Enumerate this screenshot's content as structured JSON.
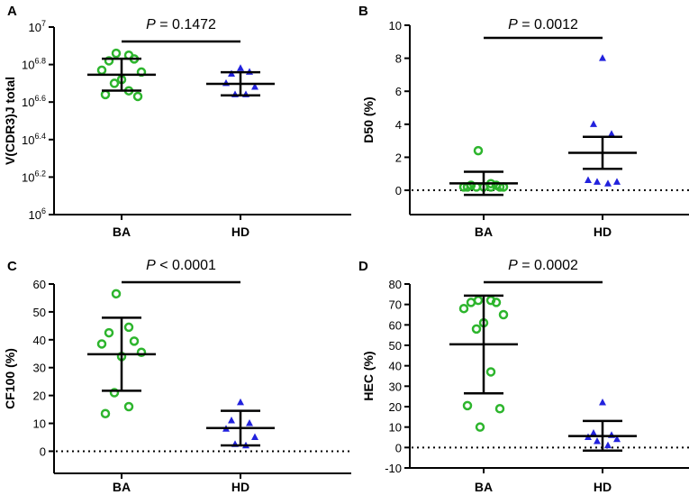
{
  "chart_data": [
    {
      "panel": "A",
      "type": "scatter",
      "ylabel": "V(CDR3)J total",
      "yscale": "log10",
      "ylim": [
        6,
        7
      ],
      "yticks": [
        6,
        6.2,
        6.4,
        6.6,
        6.8,
        7
      ],
      "ytick_labels": [
        {
          "base": "10",
          "exp": "6"
        },
        {
          "base": "10",
          "exp": "6.2"
        },
        {
          "base": "10",
          "exp": "6.4"
        },
        {
          "base": "10",
          "exp": "6.6"
        },
        {
          "base": "10",
          "exp": "6.8"
        },
        {
          "base": "10",
          "exp": "7"
        }
      ],
      "categories": [
        "BA",
        "HD"
      ],
      "p_label": {
        "p": "P",
        "rest": " = 0.1472"
      },
      "zero_line": false,
      "groups": [
        {
          "name": "BA",
          "marker": "circle",
          "color": "#2db52d",
          "values": [
            6.86,
            6.85,
            6.82,
            6.83,
            6.77,
            6.76,
            6.72,
            6.7,
            6.66,
            6.64,
            6.63
          ],
          "mean": 6.746,
          "err_low": 6.661,
          "err_high": 6.831
        },
        {
          "name": "HD",
          "marker": "triangle",
          "color": "#2222dd",
          "values": [
            6.78,
            6.75,
            6.76,
            6.7,
            6.68,
            6.64,
            6.64
          ],
          "mean": 6.697,
          "err_low": 6.636,
          "err_high": 6.759
        }
      ]
    },
    {
      "panel": "B",
      "type": "scatter",
      "ylabel": "D50 (%)",
      "ylim": [
        -1.2,
        10
      ],
      "yticks": [
        0,
        2,
        4,
        6,
        8,
        10
      ],
      "ytick_labels": [
        "0",
        "2",
        "4",
        "6",
        "8",
        "10"
      ],
      "categories": [
        "BA",
        "HD"
      ],
      "p_label": {
        "p": "P",
        "rest": " = 0.0012"
      },
      "zero_line": true,
      "groups": [
        {
          "name": "BA",
          "marker": "circle",
          "color": "#2db52d",
          "values": [
            2.4,
            0.4,
            0.3,
            0.3,
            0.2,
            0.2,
            0.2,
            0.2,
            0.2,
            0.2,
            0.2
          ],
          "mean": 0.42,
          "err_low": -0.28,
          "err_high": 1.12
        },
        {
          "name": "HD",
          "marker": "triangle",
          "color": "#2222dd",
          "values": [
            8.0,
            4.0,
            3.4,
            0.6,
            0.5,
            0.5,
            0.4
          ],
          "mean": 2.27,
          "err_low": 1.3,
          "err_high": 3.24
        }
      ]
    },
    {
      "panel": "C",
      "type": "scatter",
      "ylabel": "CF100 (%)",
      "ylim": [
        -6,
        60
      ],
      "yticks": [
        0,
        10,
        20,
        30,
        40,
        50,
        60
      ],
      "ytick_labels": [
        "0",
        "10",
        "20",
        "30",
        "40",
        "50",
        "60"
      ],
      "categories": [
        "BA",
        "HD"
      ],
      "p_label": {
        "p": "P",
        "rest": " < 0.0001"
      },
      "zero_line": true,
      "groups": [
        {
          "name": "BA",
          "marker": "circle",
          "color": "#2db52d",
          "values": [
            56.5,
            44.5,
            42.5,
            39.5,
            38.5,
            35.5,
            34.0,
            21.0,
            16.0,
            13.5
          ],
          "mean": 34.8,
          "err_low": 21.7,
          "err_high": 47.9
        },
        {
          "name": "HD",
          "marker": "triangle",
          "color": "#2222dd",
          "values": [
            17.5,
            11.0,
            10.0,
            8.0,
            5.0,
            2.5,
            2.0
          ],
          "mean": 8.3,
          "err_low": 2.1,
          "err_high": 14.5
        }
      ]
    },
    {
      "panel": "D",
      "type": "scatter",
      "ylabel": "HEC (%)",
      "ylim": [
        -10,
        80
      ],
      "yticks": [
        -10,
        0,
        10,
        20,
        30,
        40,
        50,
        60,
        70,
        80
      ],
      "ytick_labels": [
        "-10",
        "0",
        "10",
        "20",
        "30",
        "40",
        "50",
        "60",
        "70",
        "80"
      ],
      "categories": [
        "BA",
        "HD"
      ],
      "p_label": {
        "p": "P",
        "rest": " = 0.0002"
      },
      "zero_line": true,
      "groups": [
        {
          "name": "BA",
          "marker": "circle",
          "color": "#2db52d",
          "values": [
            72,
            72,
            71,
            71,
            68,
            65,
            61,
            58,
            37,
            20.5,
            19,
            10
          ],
          "mean": 50.5,
          "err_low": 26.5,
          "err_high": 74.3
        },
        {
          "name": "HD",
          "marker": "triangle",
          "color": "#2222dd",
          "values": [
            22,
            7,
            6,
            5,
            4,
            3,
            1
          ],
          "mean": 5.6,
          "err_low": -1.5,
          "err_high": 13.0
        }
      ]
    }
  ]
}
